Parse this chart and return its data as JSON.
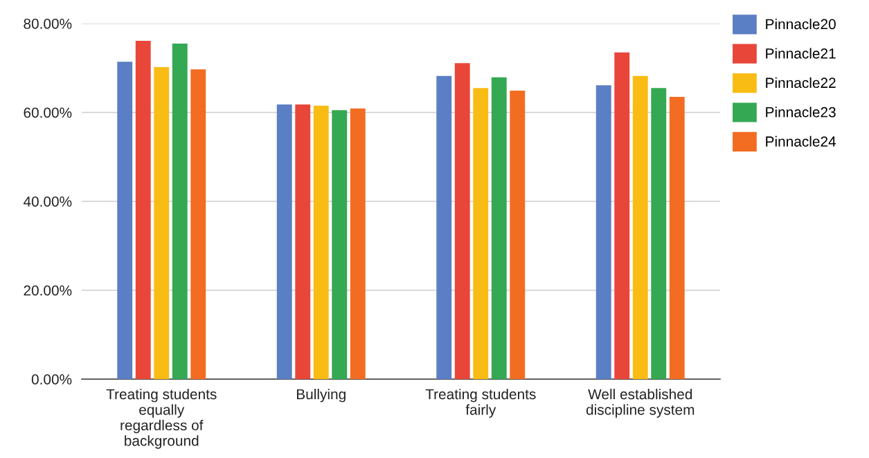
{
  "chart_data": {
    "type": "bar",
    "categories": [
      "Treating students\nequally\nregardless of\nbackground",
      "Bullying",
      "Treating students\nfairly",
      "Well established\ndiscipline system"
    ],
    "series": [
      {
        "name": "Pinnacle20",
        "color": "#5b7fc4",
        "values": [
          71.4,
          61.8,
          68.2,
          66.1
        ]
      },
      {
        "name": "Pinnacle21",
        "color": "#e9463a",
        "values": [
          76.1,
          61.8,
          71.1,
          73.5
        ]
      },
      {
        "name": "Pinnacle22",
        "color": "#f9bc15",
        "values": [
          70.2,
          61.5,
          65.5,
          68.2
        ]
      },
      {
        "name": "Pinnacle23",
        "color": "#34a853",
        "values": [
          75.5,
          60.5,
          67.9,
          65.5
        ]
      },
      {
        "name": "Pinnacle24",
        "color": "#f26d22",
        "values": [
          69.7,
          60.9,
          64.9,
          63.5
        ]
      }
    ],
    "ylim": [
      0,
      80
    ],
    "yticks": [
      {
        "value": 0,
        "label": "0.00%"
      },
      {
        "value": 20,
        "label": "20.00%"
      },
      {
        "value": 40,
        "label": "40.00%"
      },
      {
        "value": 60,
        "label": "60.00%"
      },
      {
        "value": 80,
        "label": "80.00%"
      }
    ],
    "grid": "y",
    "legend": "top right"
  }
}
